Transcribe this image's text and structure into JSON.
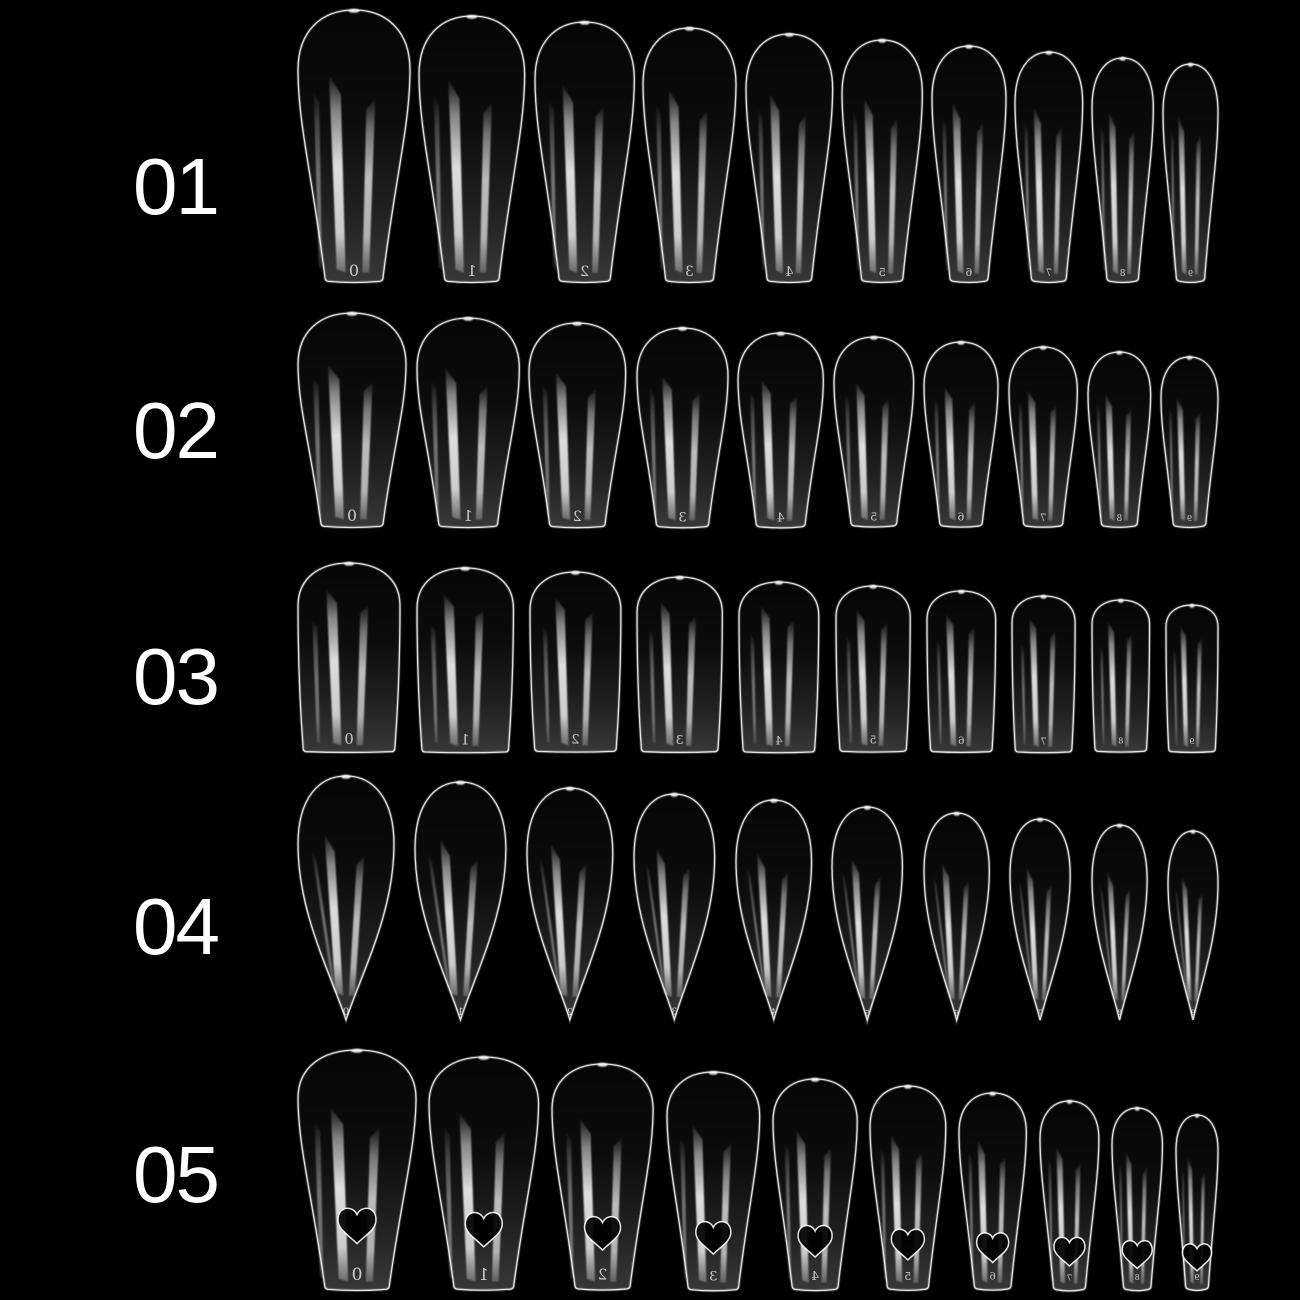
{
  "photo": {
    "description": "clear false nail tips on black background, five styles, ten sizes each",
    "colors": {
      "background": "#000000",
      "nail_line": "#ffffff"
    }
  },
  "rows": [
    {
      "label": "01",
      "shape": "long-coffin",
      "tip_numbers": [
        "0",
        "1",
        "2",
        "3",
        "4",
        "5",
        "6",
        "7",
        "8",
        "9"
      ]
    },
    {
      "label": "02",
      "shape": "coffin",
      "tip_numbers": [
        "0",
        "1",
        "2",
        "3",
        "4",
        "5",
        "6",
        "7",
        "8",
        "9"
      ]
    },
    {
      "label": "03",
      "shape": "square",
      "tip_numbers": [
        "0",
        "1",
        "2",
        "3",
        "4",
        "5",
        "6",
        "7",
        "8",
        "9"
      ]
    },
    {
      "label": "04",
      "shape": "stiletto",
      "tip_numbers": [
        "0",
        "1",
        "2",
        "3",
        "4",
        "5",
        "6",
        "7",
        "8",
        "9"
      ]
    },
    {
      "label": "05",
      "shape": "coffin-heart-hole",
      "tip_numbers": [
        "0",
        "1",
        "2",
        "3",
        "4",
        "5",
        "6",
        "7",
        "8",
        "9"
      ]
    }
  ]
}
